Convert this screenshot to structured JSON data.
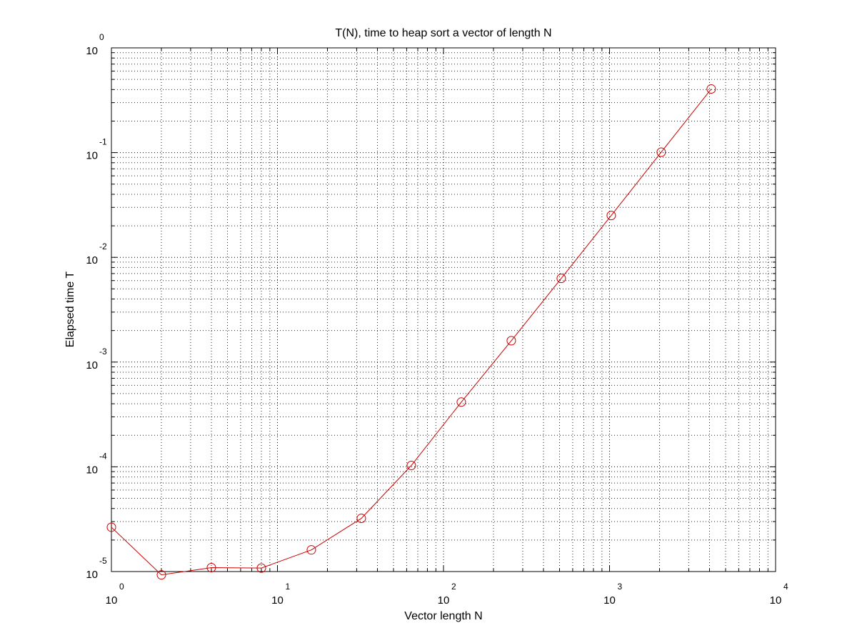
{
  "chart_data": {
    "type": "line",
    "title": "T(N), time to heap sort a vector of length N",
    "xlabel": "Vector length N",
    "ylabel": "Elapsed time T",
    "xscale": "log",
    "yscale": "log",
    "xlim": [
      1,
      10000
    ],
    "ylim": [
      1e-05,
      1
    ],
    "grid": true,
    "x_ticks": [
      {
        "base": "10",
        "exp": "0"
      },
      {
        "base": "10",
        "exp": "1"
      },
      {
        "base": "10",
        "exp": "2"
      },
      {
        "base": "10",
        "exp": "3"
      },
      {
        "base": "10",
        "exp": "4"
      }
    ],
    "y_ticks": [
      {
        "base": "10",
        "exp": "-5"
      },
      {
        "base": "10",
        "exp": "-4"
      },
      {
        "base": "10",
        "exp": "-3"
      },
      {
        "base": "10",
        "exp": "-2"
      },
      {
        "base": "10",
        "exp": "-1"
      },
      {
        "base": "10",
        "exp": "0"
      }
    ],
    "series": [
      {
        "color": "#cc0000",
        "marker": "circle",
        "x": [
          1,
          2,
          4,
          8,
          16,
          32,
          64,
          128,
          256,
          512,
          1024,
          2048,
          4096
        ],
        "y": [
          2.65e-05,
          9.3e-06,
          1.09e-05,
          1.08e-05,
          1.61e-05,
          3.22e-05,
          0.000103,
          0.000415,
          0.0016,
          0.0063,
          0.0251,
          0.101,
          0.405
        ]
      }
    ]
  }
}
